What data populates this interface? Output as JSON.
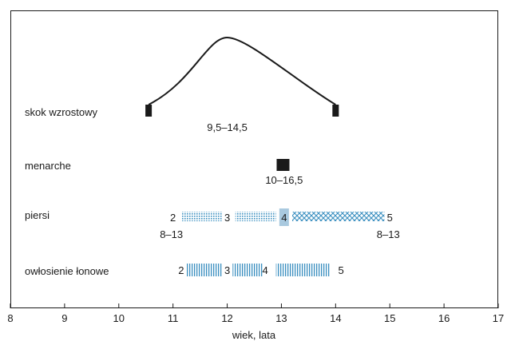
{
  "chart_data": {
    "type": "range",
    "xlabel": "wiek, lata",
    "xlim": [
      8,
      17
    ],
    "x_ticks": [
      "8",
      "9",
      "10",
      "11",
      "12",
      "13",
      "14",
      "15",
      "16",
      "17"
    ],
    "rows": [
      {
        "name": "skok wzrostowy",
        "range_label": "9,5–14,5",
        "curve": {
          "start": 10.55,
          "peak": 12.0,
          "end": 14.0
        },
        "markers": [
          10.55,
          14.0
        ]
      },
      {
        "name": "menarche",
        "range_label": "10–16,5",
        "markers": [
          13.03
        ]
      },
      {
        "name": "piersi",
        "stage_labels": [
          {
            "text": "2",
            "x": 11.0
          },
          {
            "text": "3",
            "x": 12.0
          },
          {
            "text": "4",
            "x": 13.05
          },
          {
            "text": "5",
            "x": 15.0
          }
        ],
        "segments": [
          {
            "from": 11.15,
            "to": 11.9,
            "style": "dots"
          },
          {
            "from": 12.15,
            "to": 12.9,
            "style": "dots"
          },
          {
            "from": 13.2,
            "to": 14.9,
            "style": "cross"
          }
        ],
        "range_labels": [
          {
            "text": "8–13",
            "x": 11.0
          },
          {
            "text": "8–13",
            "x": 15.0
          }
        ]
      },
      {
        "name": "owłosienie łonowe",
        "stage_labels": [
          {
            "text": "2",
            "x": 11.15
          },
          {
            "text": "3",
            "x": 12.0
          },
          {
            "text": "4",
            "x": 12.7
          },
          {
            "text": "5",
            "x": 14.1
          }
        ],
        "segments": [
          {
            "from": 11.25,
            "to": 11.9,
            "style": "vlines"
          },
          {
            "from": 12.1,
            "to": 12.65,
            "style": "vlines"
          },
          {
            "from": 12.9,
            "to": 13.9,
            "style": "vlines"
          }
        ]
      }
    ],
    "colors": {
      "accent": "#3a8fc0",
      "ink": "#1a1a1a",
      "highlight": "#a9c9df"
    }
  }
}
